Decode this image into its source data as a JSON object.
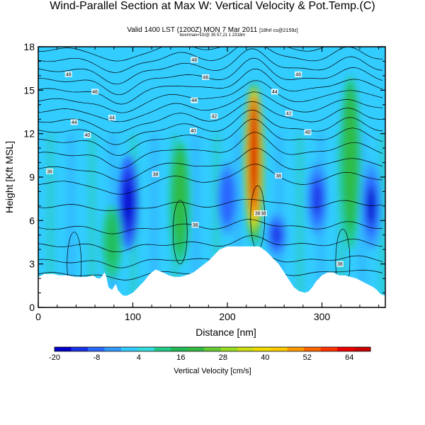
{
  "header": {
    "title": "Wind-Parallel Section at Max W: Vertical Velocity & Pot.Temp.",
    "title_mark": "(C)",
    "subtitle": "Valid 1400 LST (1200Z) MON 7 Mar 2011",
    "subtitle_note": "[18hrl cs@2159z]",
    "subtitle2": "box#max=10/@ 35 57,21 1 2318m"
  },
  "chart_data": {
    "type": "heatmap",
    "xlabel": "Distance [nm]",
    "ylabel": "Height [Kft MSL]",
    "xlim": [
      0,
      367
    ],
    "ylim": [
      0,
      18
    ],
    "x_ticks": [
      0,
      100,
      200,
      300
    ],
    "y_ticks": [
      0,
      3,
      6,
      9,
      12,
      15,
      18
    ],
    "grid": false,
    "fill_field": "Vertical Velocity",
    "contour_field": "Potential Temperature",
    "colorbar": {
      "label": "Vertical Velocity [cm/s]",
      "ticks": [
        -20,
        -8,
        4,
        16,
        28,
        40,
        52,
        64
      ],
      "range": [
        -20,
        70
      ],
      "colors": [
        "#0000cc",
        "#1a33e6",
        "#2a66ff",
        "#3399ff",
        "#33ccff",
        "#33dddd",
        "#22cc88",
        "#22bb55",
        "#33bb44",
        "#66cc33",
        "#99dd22",
        "#ccdd11",
        "#eedd00",
        "#ffcc00",
        "#ff9900",
        "#ff6600",
        "#ff3300",
        "#ee0000",
        "#cc0000"
      ]
    },
    "updraft_cores": [
      {
        "x": 228,
        "y_bottom": 4.5,
        "y_top": 15.5,
        "w_max": 70
      },
      {
        "x": 150,
        "y_bottom": 3.0,
        "y_top": 11.5,
        "w_max": 18
      },
      {
        "x": 330,
        "y_bottom": 4.0,
        "y_top": 16.0,
        "w_max": 22
      },
      {
        "x": 78,
        "y_bottom": 2.0,
        "y_top": 7.0,
        "w_max": 14
      }
    ],
    "downdraft_cores": [
      {
        "x": 95,
        "y_bottom": 4.0,
        "y_top": 10.5,
        "w_min": -20
      },
      {
        "x": 352,
        "y_bottom": 4.0,
        "y_top": 10.0,
        "w_min": -16
      },
      {
        "x": 252,
        "y_bottom": 3.5,
        "y_top": 6.5,
        "w_min": -14
      },
      {
        "x": 295,
        "y_bottom": 5.0,
        "y_top": 10.0,
        "w_min": -14
      },
      {
        "x": 200,
        "y_bottom": 5.0,
        "y_top": 10.0,
        "w_min": -10
      }
    ],
    "contour_labels": [
      {
        "text": "48",
        "x": 32,
        "y": 16.1
      },
      {
        "text": "48",
        "x": 165,
        "y": 17.1
      },
      {
        "text": "46",
        "x": 177,
        "y": 15.9
      },
      {
        "text": "46",
        "x": 275,
        "y": 16.1
      },
      {
        "text": "46",
        "x": 60,
        "y": 14.9
      },
      {
        "text": "44",
        "x": 165,
        "y": 14.3
      },
      {
        "text": "44",
        "x": 250,
        "y": 14.9
      },
      {
        "text": "44",
        "x": 78,
        "y": 13.1
      },
      {
        "text": "44",
        "x": 38,
        "y": 12.8
      },
      {
        "text": "42",
        "x": 186,
        "y": 13.2
      },
      {
        "text": "42",
        "x": 265,
        "y": 13.4
      },
      {
        "text": "40",
        "x": 164,
        "y": 12.2
      },
      {
        "text": "40",
        "x": 285,
        "y": 12.1
      },
      {
        "text": "40",
        "x": 52,
        "y": 11.9
      },
      {
        "text": "38",
        "x": 12,
        "y": 9.4
      },
      {
        "text": "38",
        "x": 124,
        "y": 9.2
      },
      {
        "text": "38",
        "x": 254,
        "y": 9.1
      },
      {
        "text": "38",
        "x": 238,
        "y": 6.5
      },
      {
        "text": "38",
        "x": 166,
        "y": 5.7
      },
      {
        "text": "38",
        "x": 232,
        "y": 6.5
      },
      {
        "text": "38",
        "x": 319,
        "y": 3.0
      }
    ]
  }
}
